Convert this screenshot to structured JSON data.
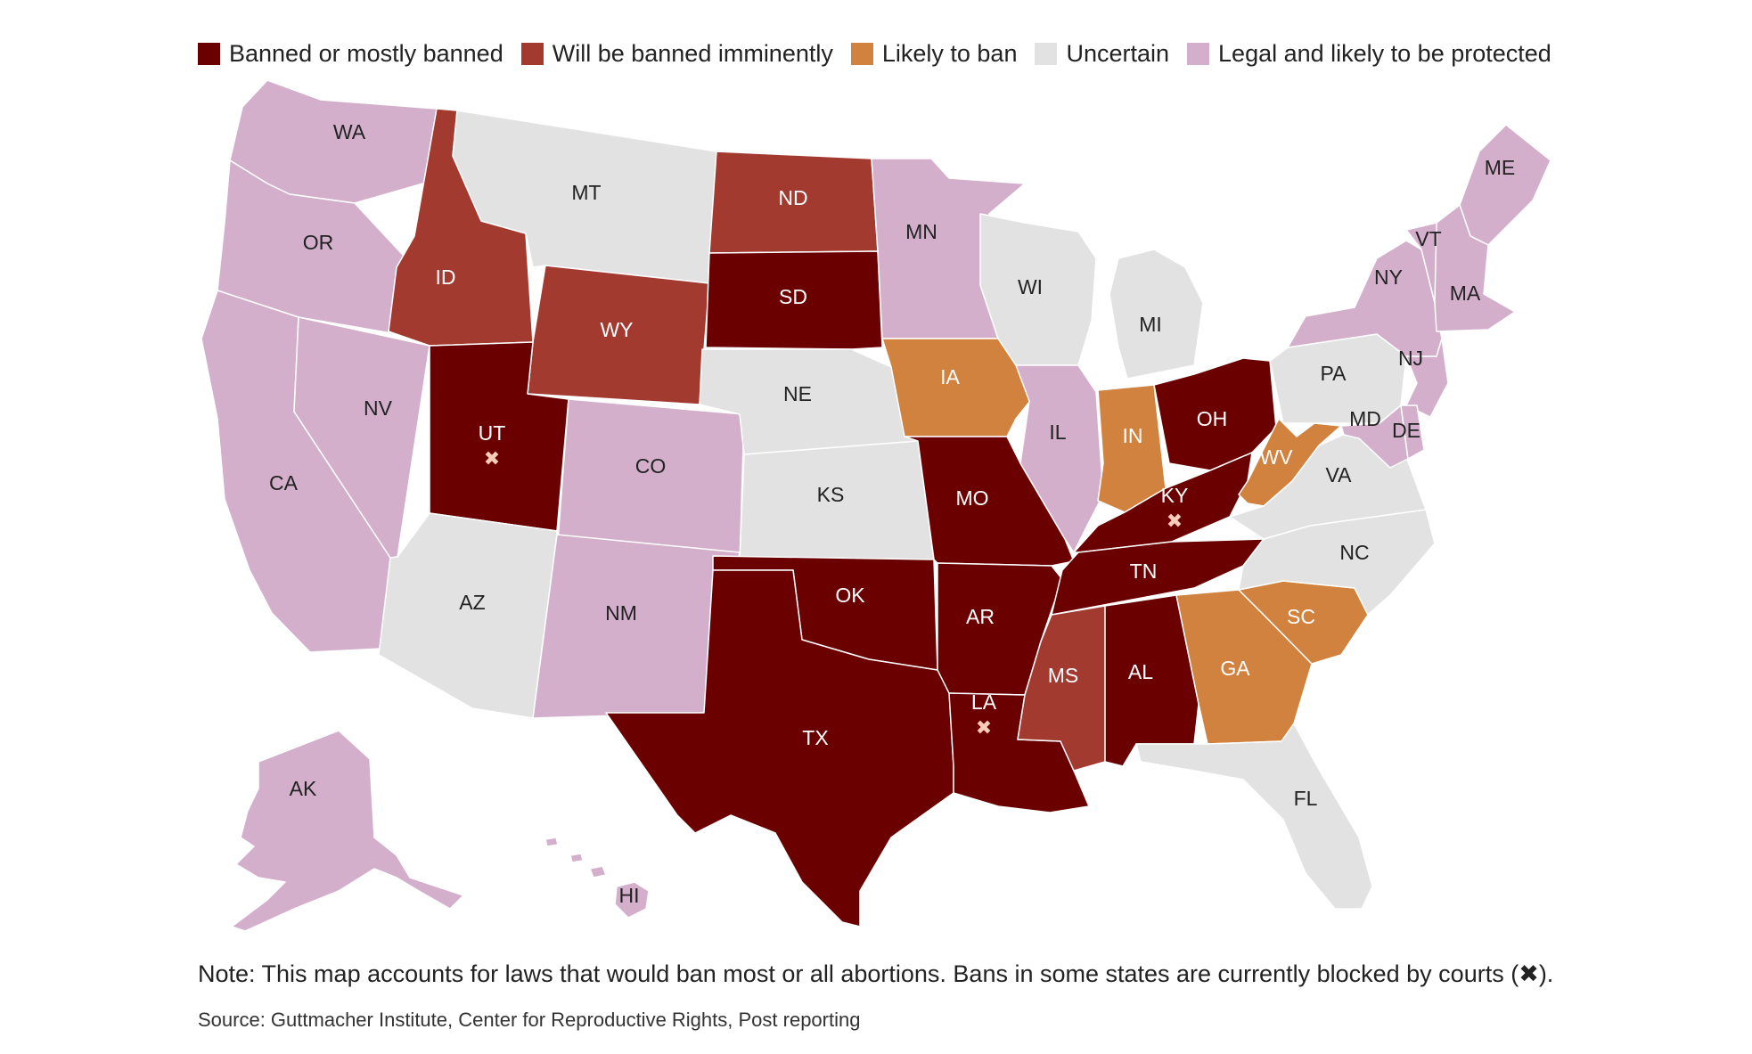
{
  "legend": [
    {
      "key": "banned",
      "label": "Banned or mostly banned",
      "color": "#6b0000"
    },
    {
      "key": "imminent",
      "label": "Will be banned imminently",
      "color": "#a23a30"
    },
    {
      "key": "likely",
      "label": "Likely to ban",
      "color": "#d0823e"
    },
    {
      "key": "uncertain",
      "label": "Uncertain",
      "color": "#e2e2e2"
    },
    {
      "key": "legal",
      "label": "Legal and likely to be protected",
      "color": "#d3afcc"
    }
  ],
  "states": [
    {
      "abbr": "WA",
      "status": "legal"
    },
    {
      "abbr": "OR",
      "status": "legal"
    },
    {
      "abbr": "CA",
      "status": "legal"
    },
    {
      "abbr": "NV",
      "status": "legal"
    },
    {
      "abbr": "ID",
      "status": "imminent"
    },
    {
      "abbr": "MT",
      "status": "uncertain"
    },
    {
      "abbr": "WY",
      "status": "imminent"
    },
    {
      "abbr": "UT",
      "status": "banned",
      "blocked": true
    },
    {
      "abbr": "CO",
      "status": "legal"
    },
    {
      "abbr": "AZ",
      "status": "uncertain"
    },
    {
      "abbr": "NM",
      "status": "legal"
    },
    {
      "abbr": "ND",
      "status": "imminent"
    },
    {
      "abbr": "SD",
      "status": "banned"
    },
    {
      "abbr": "NE",
      "status": "uncertain"
    },
    {
      "abbr": "KS",
      "status": "uncertain"
    },
    {
      "abbr": "OK",
      "status": "banned"
    },
    {
      "abbr": "TX",
      "status": "banned"
    },
    {
      "abbr": "MN",
      "status": "legal"
    },
    {
      "abbr": "IA",
      "status": "likely"
    },
    {
      "abbr": "MO",
      "status": "banned"
    },
    {
      "abbr": "AR",
      "status": "banned"
    },
    {
      "abbr": "LA",
      "status": "banned",
      "blocked": true
    },
    {
      "abbr": "WI",
      "status": "uncertain"
    },
    {
      "abbr": "IL",
      "status": "legal"
    },
    {
      "abbr": "MI",
      "status": "uncertain"
    },
    {
      "abbr": "IN",
      "status": "likely"
    },
    {
      "abbr": "OH",
      "status": "banned"
    },
    {
      "abbr": "KY",
      "status": "banned",
      "blocked": true
    },
    {
      "abbr": "TN",
      "status": "banned"
    },
    {
      "abbr": "MS",
      "status": "imminent"
    },
    {
      "abbr": "AL",
      "status": "banned"
    },
    {
      "abbr": "GA",
      "status": "likely"
    },
    {
      "abbr": "FL",
      "status": "uncertain"
    },
    {
      "abbr": "SC",
      "status": "likely"
    },
    {
      "abbr": "NC",
      "status": "uncertain"
    },
    {
      "abbr": "VA",
      "status": "uncertain"
    },
    {
      "abbr": "WV",
      "status": "likely"
    },
    {
      "abbr": "PA",
      "status": "uncertain"
    },
    {
      "abbr": "NY",
      "status": "legal"
    },
    {
      "abbr": "VT",
      "status": "legal"
    },
    {
      "abbr": "ME",
      "status": "legal"
    },
    {
      "abbr": "MA",
      "status": "legal"
    },
    {
      "abbr": "NJ",
      "status": "legal"
    },
    {
      "abbr": "MD",
      "status": "legal"
    },
    {
      "abbr": "DE",
      "status": "legal"
    },
    {
      "abbr": "AK",
      "status": "legal"
    },
    {
      "abbr": "HI",
      "status": "legal"
    }
  ],
  "blocked_marker": "✖",
  "note": "Note: This map accounts for laws that would ban most or all abortions. Bans in some states are currently blocked by courts (✖).",
  "source": "Source: Guttmacher Institute, Center for Reproductive Rights, Post reporting"
}
